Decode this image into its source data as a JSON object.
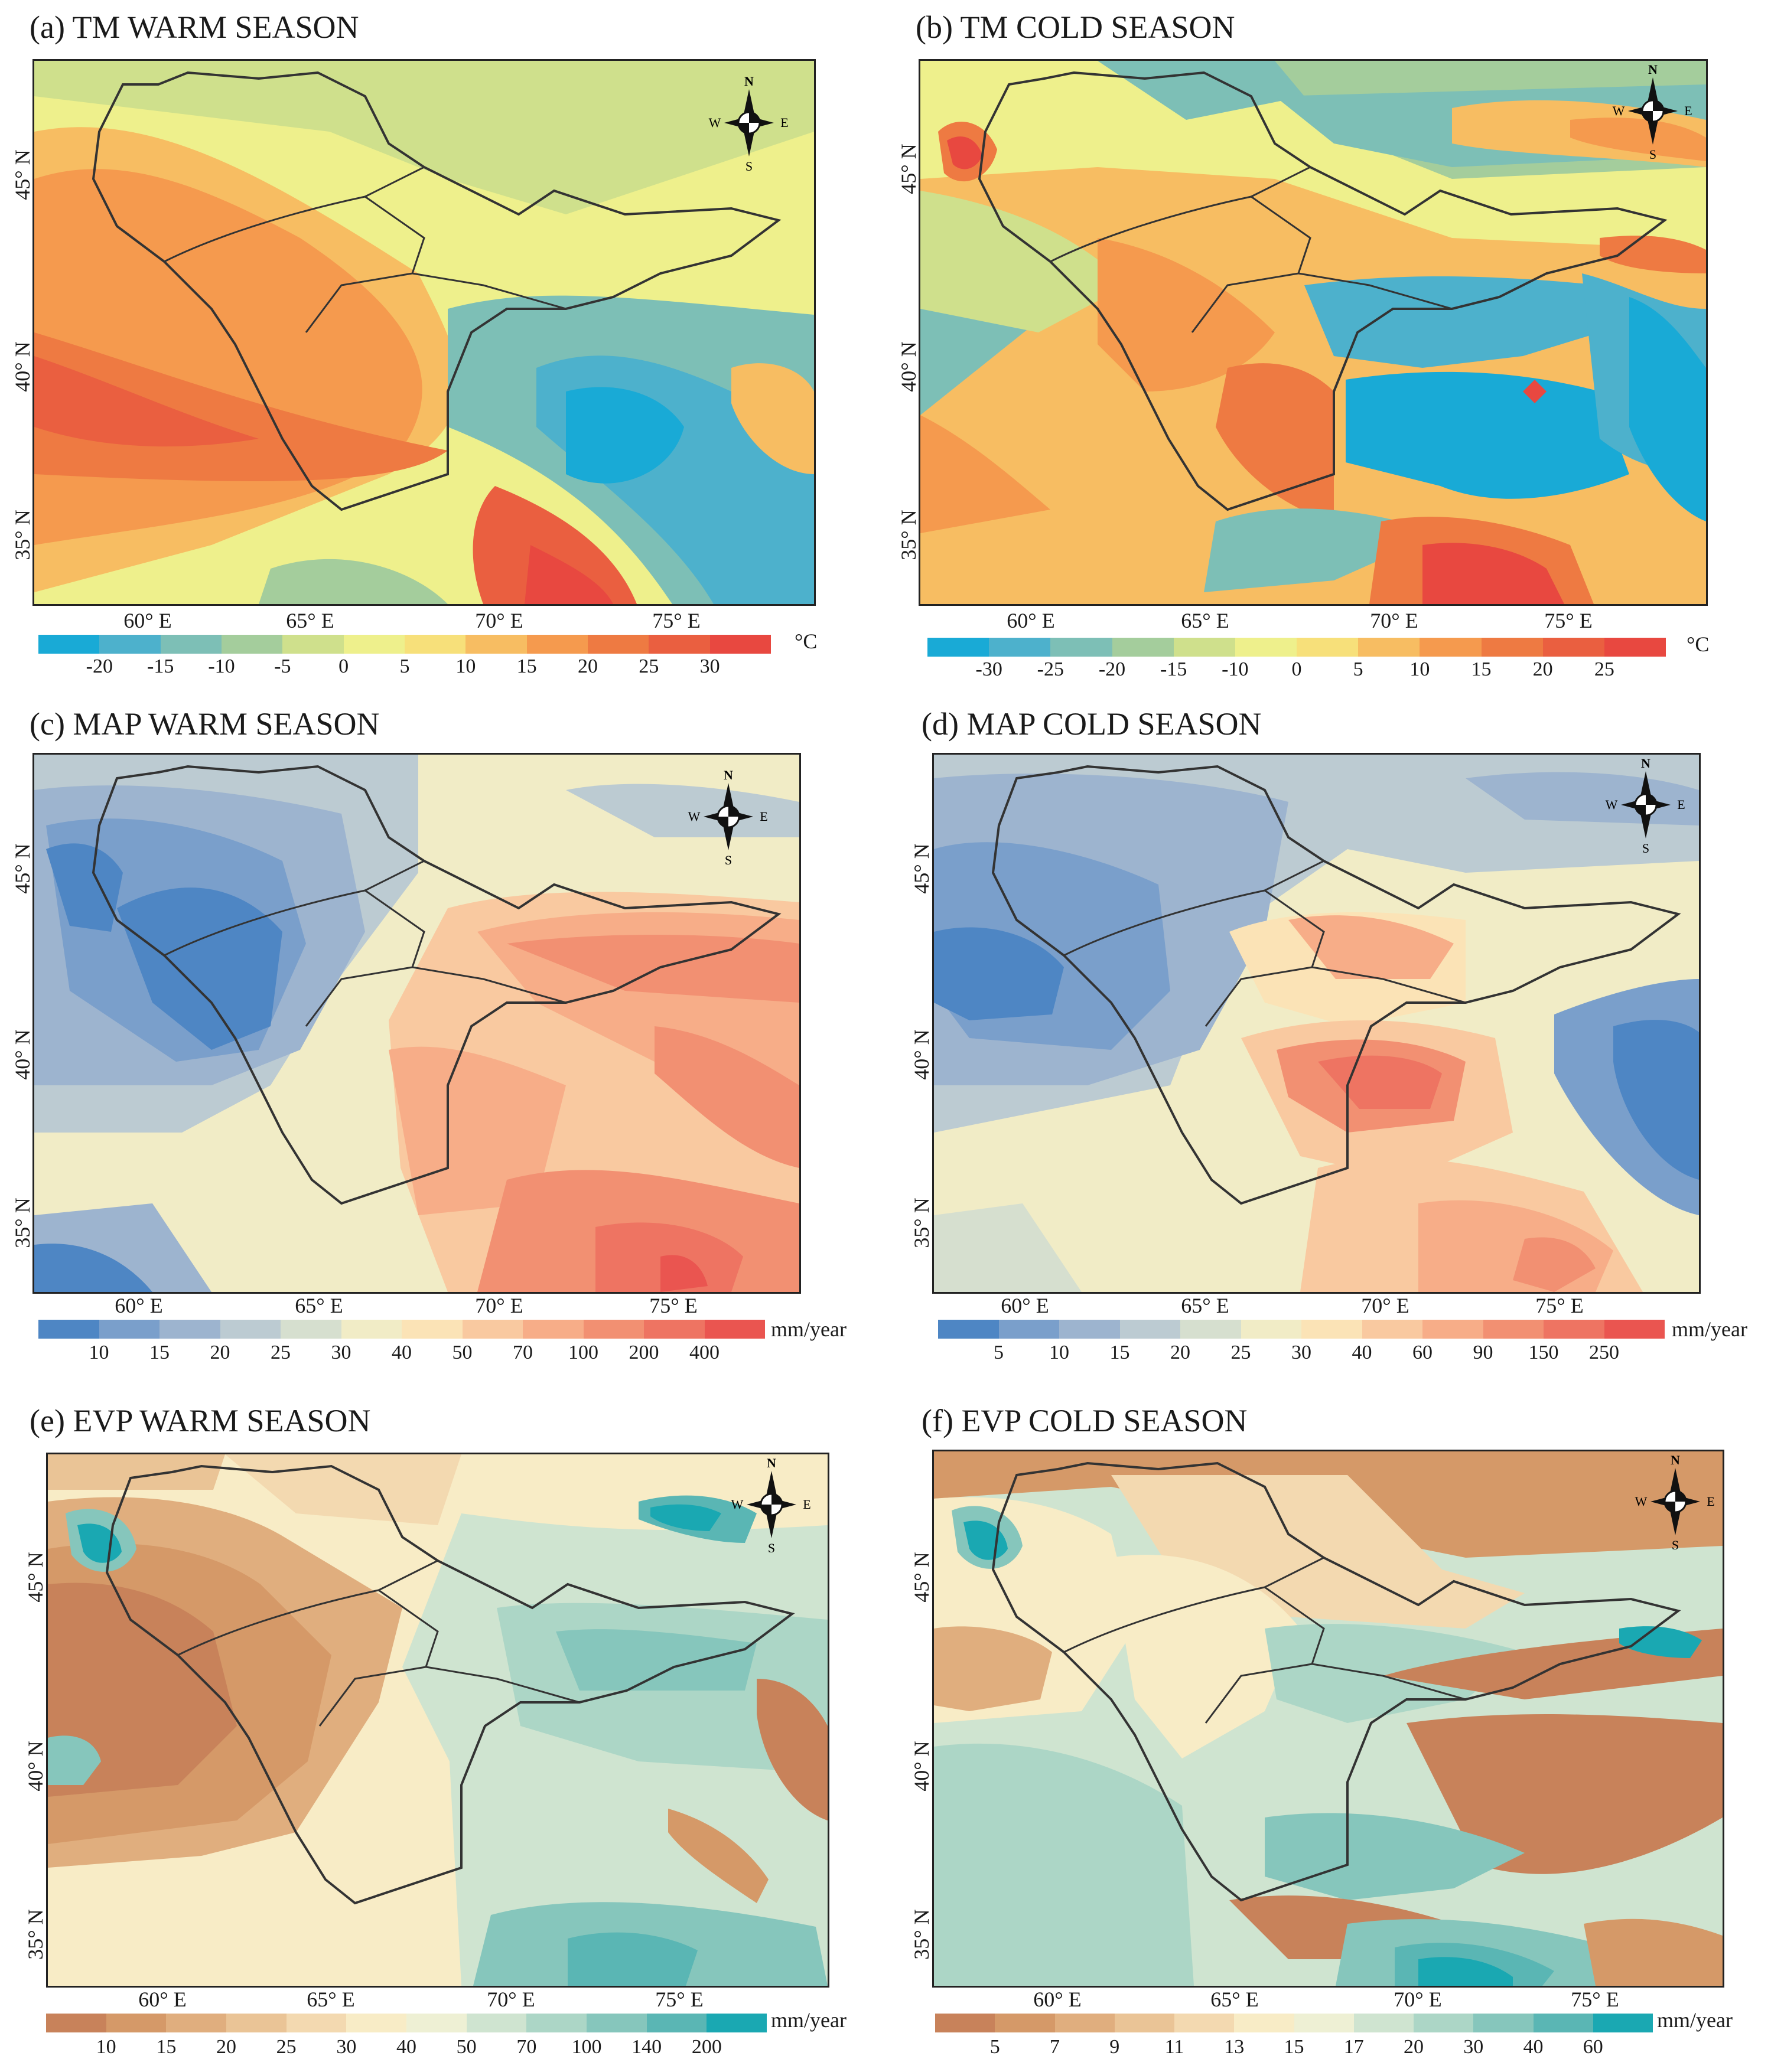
{
  "panels": [
    {
      "id": "a",
      "title": "(a) TM WARM SEASON",
      "lat_labels": [
        "45° N",
        "40° N",
        "35° N"
      ],
      "lon_labels": [
        "60° E",
        "65° E",
        "70° E",
        "75° E"
      ],
      "colorbar": {
        "colors": [
          "#19aad6",
          "#4db1cc",
          "#7dbfb6",
          "#a4cd9c",
          "#cfe08c",
          "#eef08c",
          "#f7e07a",
          "#f7bd62",
          "#f59a4e",
          "#ee7a42",
          "#ea5f40",
          "#e84840"
        ],
        "ticks": [
          "-20",
          "-15",
          "-10",
          "-5",
          "0",
          "5",
          "10",
          "15",
          "20",
          "25",
          "30"
        ],
        "unit": "°C"
      }
    },
    {
      "id": "b",
      "title": "(b) TM COLD SEASON",
      "lat_labels": [
        "45° N",
        "40° N",
        "35° N"
      ],
      "lon_labels": [
        "60° E",
        "65° E",
        "70° E",
        "75° E"
      ],
      "colorbar": {
        "colors": [
          "#19aad6",
          "#4db1cc",
          "#7dbfb6",
          "#a4cd9c",
          "#cfe08c",
          "#eef08c",
          "#f7e07a",
          "#f7bd62",
          "#f59a4e",
          "#ee7a42",
          "#ea5f40",
          "#e84840"
        ],
        "ticks": [
          "-30",
          "-25",
          "-20",
          "-15",
          "-10",
          "0",
          "5",
          "10",
          "15",
          "20",
          "25"
        ],
        "unit": "°C"
      }
    },
    {
      "id": "c",
      "title": "(c) MAP WARM SEASON",
      "lat_labels": [
        "45° N",
        "40° N",
        "35° N"
      ],
      "lon_labels": [
        "60° E",
        "65° E",
        "70° E",
        "75° E"
      ],
      "colorbar": {
        "colors": [
          "#4e86c4",
          "#7a9fcb",
          "#9db4cf",
          "#bccbd2",
          "#d6dfcf",
          "#f1ecc6",
          "#fbe3b6",
          "#f9c9a0",
          "#f7ad88",
          "#f29072",
          "#ee7462",
          "#ea5550"
        ],
        "ticks": [
          "10",
          "15",
          "20",
          "25",
          "30",
          "40",
          "50",
          "70",
          "100",
          "200",
          "400"
        ],
        "unit": "mm/year"
      }
    },
    {
      "id": "d",
      "title": "(d) MAP COLD SEASON",
      "lat_labels": [
        "45° N",
        "40° N",
        "35° N"
      ],
      "lon_labels": [
        "60° E",
        "65° E",
        "70° E",
        "75° E"
      ],
      "colorbar": {
        "colors": [
          "#4e86c4",
          "#7a9fcb",
          "#9db4cf",
          "#bccbd2",
          "#d6dfcf",
          "#f1ecc6",
          "#fbe3b6",
          "#f9c9a0",
          "#f7ad88",
          "#f29072",
          "#ee7462",
          "#ea5550"
        ],
        "ticks": [
          "5",
          "10",
          "15",
          "20",
          "25",
          "30",
          "40",
          "60",
          "90",
          "150",
          "250"
        ],
        "unit": "mm/year"
      }
    },
    {
      "id": "e",
      "title": "(e) EVP WARM SEASON",
      "lat_labels": [
        "45° N",
        "40° N",
        "35° N"
      ],
      "lon_labels": [
        "60° E",
        "65° E",
        "70° E",
        "75° E"
      ],
      "colorbar": {
        "colors": [
          "#c8825a",
          "#d59968",
          "#e0ae7e",
          "#eac496",
          "#f3d9b0",
          "#f8ecc6",
          "#eef0d4",
          "#cfe4d0",
          "#acd6c6",
          "#86c6bc",
          "#5ab6b4",
          "#1aa8b2"
        ],
        "ticks": [
          "10",
          "15",
          "20",
          "25",
          "30",
          "40",
          "50",
          "70",
          "100",
          "140",
          "200"
        ],
        "unit": "mm/year"
      }
    },
    {
      "id": "f",
      "title": "(f) EVP COLD SEASON",
      "lat_labels": [
        "45° N",
        "40° N",
        "35° N"
      ],
      "lon_labels": [
        "60° E",
        "65° E",
        "70° E",
        "75° E"
      ],
      "colorbar": {
        "colors": [
          "#c8825a",
          "#d59968",
          "#e0ae7e",
          "#eac496",
          "#f3d9b0",
          "#f8ecc6",
          "#eef0d4",
          "#cfe4d0",
          "#acd6c6",
          "#86c6bc",
          "#5ab6b4",
          "#1aa8b2"
        ],
        "ticks": [
          "5",
          "7",
          "9",
          "11",
          "13",
          "15",
          "17",
          "20",
          "30",
          "40",
          "60"
        ],
        "unit": "mm/year"
      }
    }
  ],
  "compass": {
    "n": "N",
    "s": "S",
    "e": "E",
    "w": "W"
  }
}
